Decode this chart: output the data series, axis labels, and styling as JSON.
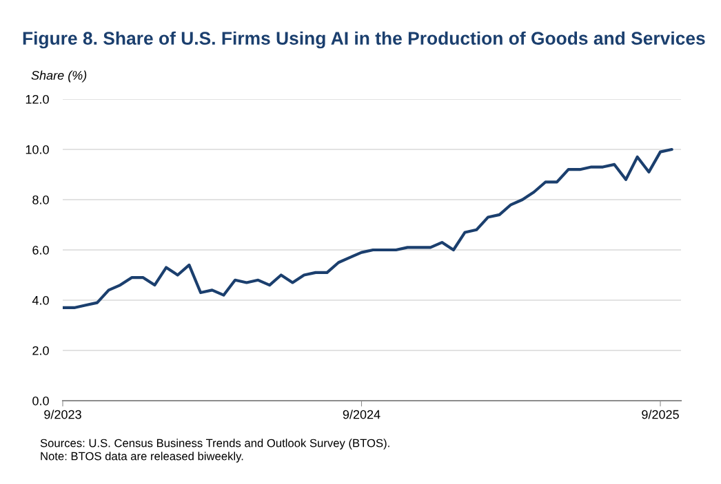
{
  "chart_data": {
    "type": "line",
    "title": "Figure 8. Share of U.S. Firms Using AI in the Production of Goods and Services",
    "ylabel": "Share (%)",
    "categories": [
      "9/2023",
      null,
      null,
      null,
      null,
      null,
      null,
      null,
      null,
      null,
      null,
      null,
      null,
      null,
      null,
      null,
      null,
      null,
      null,
      null,
      null,
      null,
      null,
      null,
      null,
      null,
      "9/2024",
      null,
      null,
      null,
      null,
      null,
      null,
      null,
      null,
      null,
      null,
      null,
      null,
      null,
      null,
      null,
      null,
      null,
      null,
      null,
      null,
      null,
      null,
      null,
      null,
      null,
      "9/2025",
      null
    ],
    "series": [
      {
        "color": "#1b3f6e",
        "values": [
          3.7,
          3.7,
          3.8,
          3.9,
          4.4,
          4.6,
          4.9,
          4.9,
          4.6,
          5.3,
          5.0,
          5.4,
          4.3,
          4.4,
          4.2,
          4.8,
          4.7,
          4.8,
          4.6,
          5.0,
          4.7,
          5.0,
          5.1,
          5.1,
          5.5,
          5.7,
          5.9,
          6.0,
          6.0,
          6.0,
          6.1,
          6.1,
          6.1,
          6.3,
          6.0,
          6.7,
          6.8,
          7.3,
          7.4,
          7.8,
          8.0,
          8.3,
          8.7,
          8.7,
          9.2,
          9.2,
          9.3,
          9.3,
          9.4,
          8.8,
          9.7,
          9.1,
          9.9,
          10.0
        ]
      }
    ],
    "ylim": [
      0,
      12
    ],
    "yticks": [
      {
        "value": 0,
        "label": "0.0"
      },
      {
        "value": 2,
        "label": "2.0"
      },
      {
        "value": 4,
        "label": "4.0"
      },
      {
        "value": 6,
        "label": "6.0"
      },
      {
        "value": 8,
        "label": "8.0"
      },
      {
        "value": 10,
        "label": "10.0"
      },
      {
        "value": 12,
        "label": "12.0"
      }
    ],
    "grid": "y",
    "annotations": [
      "Sources: U.S. Census Business Trends and Outlook Survey (BTOS).",
      "Note: BTOS data are released biweekly."
    ]
  }
}
